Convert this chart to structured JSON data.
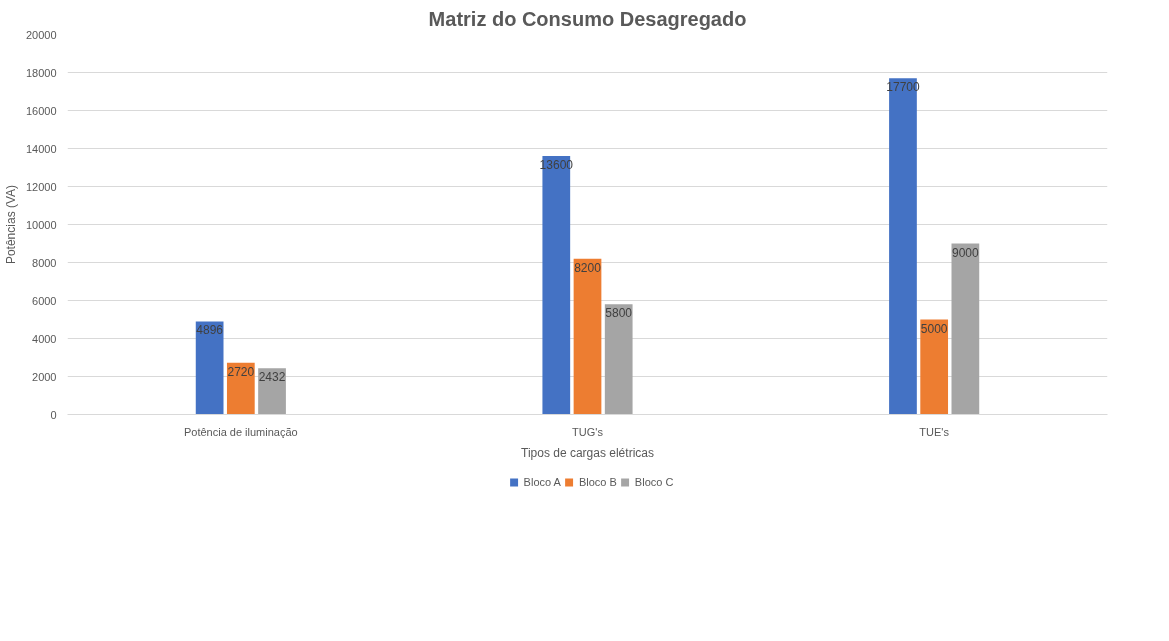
{
  "chart_data": {
    "type": "bar",
    "title": "Matriz do Consumo Desagregado",
    "xlabel": "Tipos de cargas elétricas",
    "ylabel": "Potências (VA)",
    "categories": [
      "Potência de iluminação",
      "TUG's",
      "TUE's"
    ],
    "series": [
      {
        "name": "Bloco A",
        "color": "#4472c4",
        "values": [
          4896,
          13600,
          17700
        ]
      },
      {
        "name": "Bloco B",
        "color": "#ed7d31",
        "values": [
          2720,
          8200,
          5000
        ]
      },
      {
        "name": "Bloco C",
        "color": "#a5a5a5",
        "values": [
          2432,
          5800,
          9000
        ]
      }
    ],
    "ylim": [
      0,
      20000
    ],
    "yticks": [
      0,
      2000,
      4000,
      6000,
      8000,
      10000,
      12000,
      14000,
      16000,
      18000,
      20000
    ],
    "grid": "y",
    "legend": "bottom",
    "data_labels": true
  }
}
